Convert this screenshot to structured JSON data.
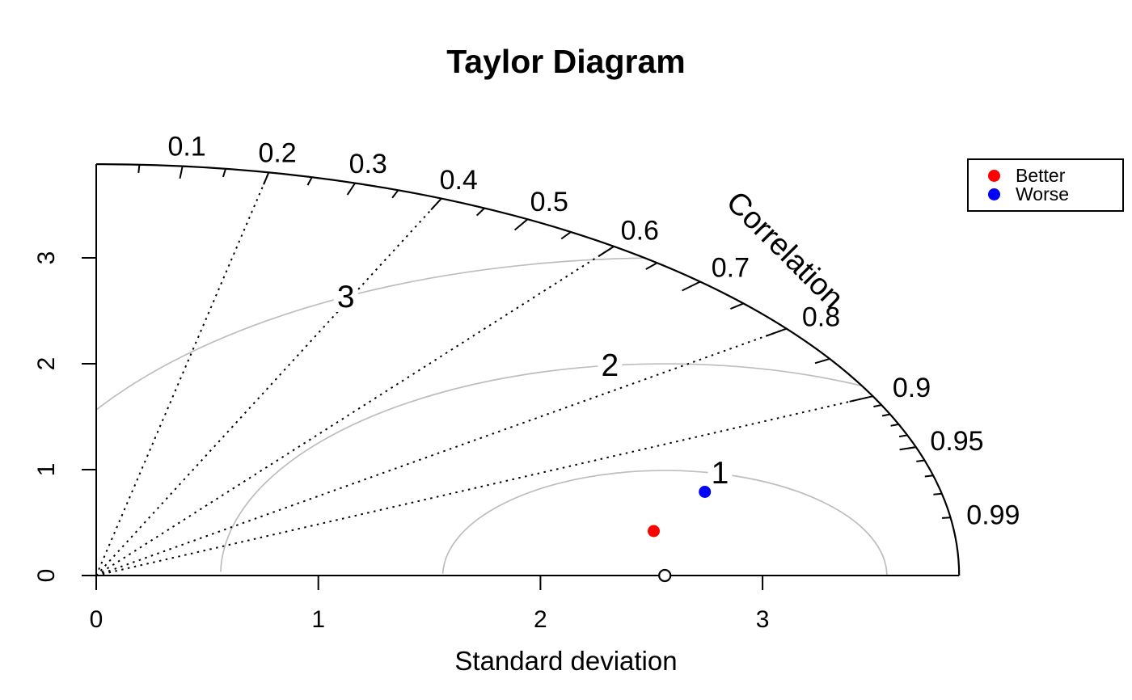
{
  "title": "Taylor Diagram",
  "axis": {
    "xlabel": "Standard deviation",
    "correlation_label": "Correlation",
    "x_tick_labels": [
      "0",
      "1",
      "2",
      "3"
    ],
    "y_tick_labels": [
      "0",
      "1",
      "2",
      "3"
    ]
  },
  "legend": {
    "items": [
      {
        "label": "Better",
        "color": "#ff0000"
      },
      {
        "label": "Worse",
        "color": "#0000ff"
      }
    ]
  },
  "colors": {
    "foreground": "#000000",
    "gamma_arc": "#bdbdbd",
    "background": "#ffffff",
    "better_point": "#ff0000",
    "worse_point": "#0000ff"
  },
  "chart_data": {
    "type": "scatter",
    "subtype": "taylor-diagram",
    "title": "Taylor Diagram",
    "xlabel": "Standard deviation",
    "ylabel": "",
    "arc_label": "Correlation",
    "max_sd": 3.885,
    "sd_axis_ticks": [
      0,
      1,
      2,
      3
    ],
    "x_tick_labels": [
      "0",
      "1",
      "2",
      "3"
    ],
    "y_tick_labels": [
      "0",
      "1",
      "2",
      "3"
    ],
    "correlation_big_ticks": [
      0.1,
      0.2,
      0.3,
      0.4,
      0.5,
      0.6,
      0.7,
      0.8,
      0.9
    ],
    "correlation_medium_ticks": [
      0.05,
      0.15,
      0.25,
      0.35,
      0.45,
      0.55,
      0.65,
      0.75,
      0.85,
      0.95
    ],
    "correlation_small_ticks": [
      0.91,
      0.92,
      0.93,
      0.94,
      0.95,
      0.96,
      0.97,
      0.98,
      0.99
    ],
    "correlation_labels": [
      {
        "value": 0.1,
        "text": "0.1"
      },
      {
        "value": 0.2,
        "text": "0.2"
      },
      {
        "value": 0.3,
        "text": "0.3"
      },
      {
        "value": 0.4,
        "text": "0.4"
      },
      {
        "value": 0.5,
        "text": "0.5"
      },
      {
        "value": 0.6,
        "text": "0.6"
      },
      {
        "value": 0.7,
        "text": "0.7"
      },
      {
        "value": 0.8,
        "text": "0.8"
      },
      {
        "value": 0.9,
        "text": "0.9"
      },
      {
        "value": 0.95,
        "text": "0.95"
      },
      {
        "value": 0.99,
        "text": "0.99"
      }
    ],
    "correlation_rays": [
      0.2,
      0.4,
      0.6,
      0.8,
      0.9
    ],
    "rms_arcs": [
      {
        "label": "1",
        "radius": 1,
        "label_angle_deg": 75.6
      },
      {
        "label": "2",
        "radius": 2,
        "label_angle_deg": 97.1
      },
      {
        "label": "3",
        "radius": 3,
        "label_angle_deg": 118.6
      }
    ],
    "reference_point": {
      "x": 2.56,
      "y": 0,
      "sd": 2.56,
      "correlation": 1.0,
      "marker": "open-circle"
    },
    "points": [
      {
        "name": "Better",
        "color": "#ff0000",
        "x": 2.51,
        "y": 0.42,
        "sd": 2.54,
        "correlation": 0.986
      },
      {
        "name": "Worse",
        "color": "#0000ff",
        "x": 2.74,
        "y": 0.79,
        "sd": 2.85,
        "correlation": 0.961
      }
    ],
    "legend_entries": [
      "Better",
      "Worse"
    ],
    "legend_position": "top-right",
    "grid": false,
    "xlim": [
      0,
      3.885
    ],
    "ylim": [
      0,
      3.885
    ]
  }
}
